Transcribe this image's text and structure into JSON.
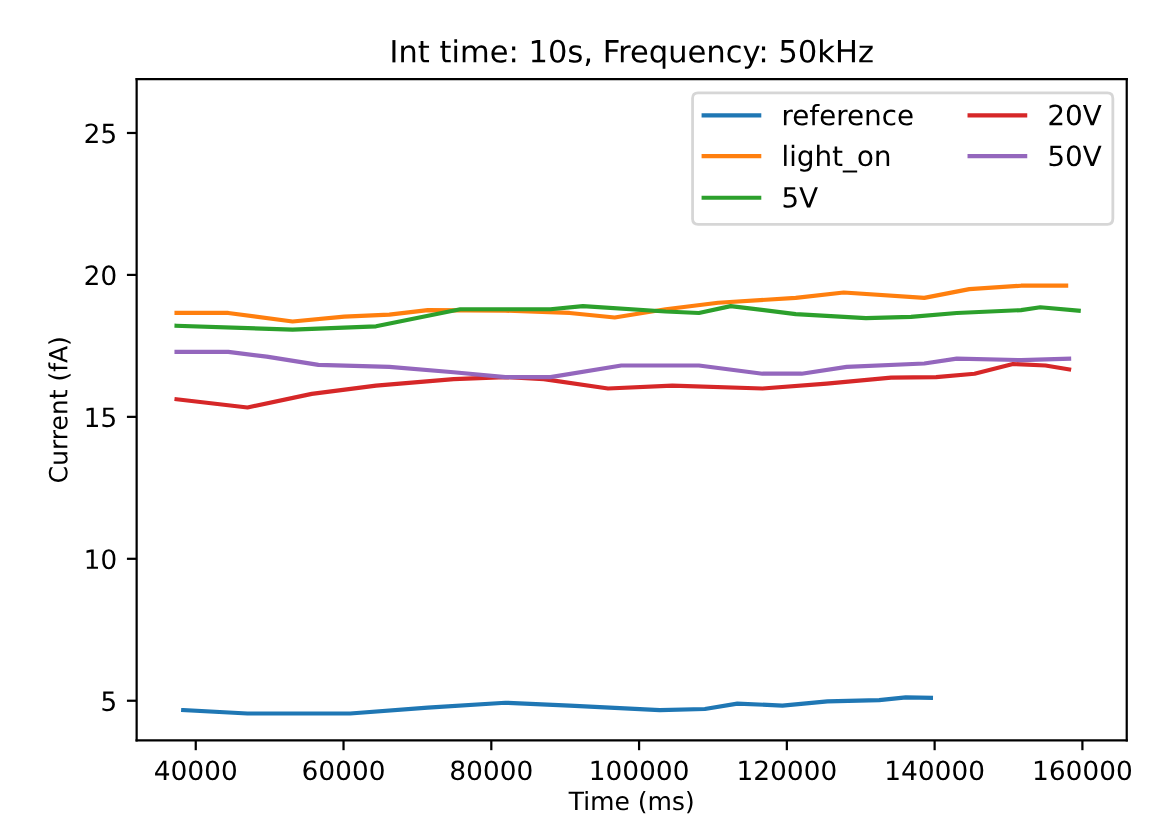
{
  "chart_data": {
    "type": "line",
    "title": "Int time: 10s, Frequency: 50kHz",
    "xlabel": "Time (ms)",
    "ylabel": "Current (fA)",
    "xlim": [
      32000,
      166000
    ],
    "xticks": [
      40000,
      60000,
      80000,
      100000,
      120000,
      140000,
      160000
    ],
    "ylim": [
      3.6,
      26.9
    ],
    "yticks": [
      5,
      10,
      15,
      20,
      25
    ],
    "grid": false,
    "legend": "top right",
    "series": [
      {
        "name": "reference",
        "color": "#1f77b4",
        "x": [
          38300,
          47000,
          60900,
          71400,
          81900,
          90600,
          102800,
          108900,
          113300,
          119400,
          125500,
          132500,
          136100,
          139500
        ],
        "values": [
          4.67,
          4.55,
          4.55,
          4.76,
          4.93,
          4.83,
          4.67,
          4.71,
          4.9,
          4.83,
          4.98,
          5.02,
          5.12,
          5.1
        ]
      },
      {
        "name": "light_on",
        "color": "#ff7f0e",
        "x": [
          37400,
          44400,
          53100,
          60100,
          66200,
          71400,
          81900,
          90600,
          96700,
          103600,
          110700,
          121200,
          127700,
          138600,
          144700,
          151700,
          157800
        ],
        "values": [
          18.66,
          18.66,
          18.36,
          18.53,
          18.6,
          18.76,
          18.74,
          18.66,
          18.5,
          18.79,
          19.02,
          19.19,
          19.38,
          19.19,
          19.5,
          19.62,
          19.62
        ]
      },
      {
        "name": "5V",
        "color": "#2ca02c",
        "x": [
          37400,
          53100,
          64400,
          75800,
          88000,
          92400,
          103600,
          108100,
          112400,
          121200,
          130700,
          136800,
          143000,
          151700,
          154300,
          159500
        ],
        "values": [
          18.21,
          18.07,
          18.19,
          18.79,
          18.79,
          18.9,
          18.71,
          18.66,
          18.9,
          18.62,
          18.48,
          18.52,
          18.66,
          18.76,
          18.86,
          18.74
        ]
      },
      {
        "name": "20V",
        "color": "#d62728",
        "x": [
          37400,
          47000,
          55700,
          64400,
          74900,
          81900,
          87100,
          95800,
          104500,
          116700,
          125400,
          134100,
          140200,
          145400,
          150600,
          155000,
          158200
        ],
        "values": [
          15.62,
          15.33,
          15.81,
          16.1,
          16.33,
          16.4,
          16.33,
          16.0,
          16.1,
          16.0,
          16.17,
          16.38,
          16.4,
          16.52,
          16.86,
          16.81,
          16.67
        ]
      },
      {
        "name": "50V",
        "color": "#9467bd",
        "x": [
          37400,
          44400,
          49600,
          56600,
          66200,
          74900,
          81900,
          88000,
          97600,
          108100,
          116700,
          122000,
          128100,
          138600,
          143000,
          151700,
          158200
        ],
        "values": [
          17.29,
          17.29,
          17.12,
          16.83,
          16.76,
          16.57,
          16.4,
          16.4,
          16.81,
          16.81,
          16.52,
          16.52,
          16.76,
          16.88,
          17.05,
          17.0,
          17.05
        ]
      }
    ]
  }
}
